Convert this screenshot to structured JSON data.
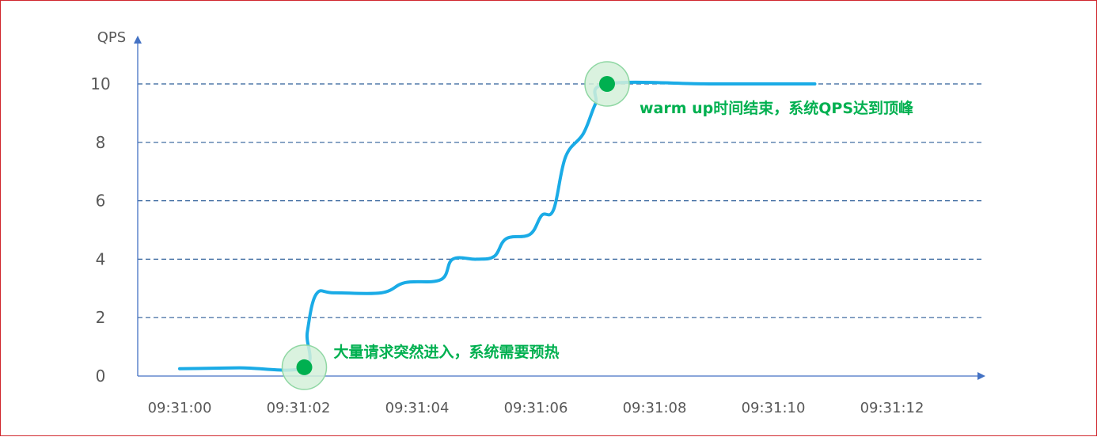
{
  "chart_data": {
    "type": "line",
    "title": "",
    "xlabel": "",
    "ylabel": "QPS",
    "ylim": [
      0,
      10
    ],
    "y_ticks": [
      "0",
      "2",
      "4",
      "6",
      "8",
      "10"
    ],
    "x_ticks": [
      "09:31:00",
      "09:31:02",
      "09:31:04",
      "09:31:06",
      "09:31:08",
      "09:31:10",
      "09:31:12"
    ],
    "grid": "dashed horizontal lines at y = 2, 4, 6, 8, 10",
    "series": [
      {
        "color": "#1aabe6",
        "points": [
          [
            "09:31:00.00",
            0.25
          ],
          [
            "09:31:01.00",
            0.28
          ],
          [
            "09:31:02.10",
            0.3
          ],
          [
            "09:31:02.15",
            1.5
          ],
          [
            "09:31:02.30",
            2.8
          ],
          [
            "09:31:02.60",
            2.85
          ],
          [
            "09:31:03.40",
            2.85
          ],
          [
            "09:31:03.80",
            3.2
          ],
          [
            "09:31:04.40",
            3.3
          ],
          [
            "09:31:04.60",
            4.0
          ],
          [
            "09:31:05.00",
            4.0
          ],
          [
            "09:31:05.30",
            4.1
          ],
          [
            "09:31:05.50",
            4.7
          ],
          [
            "09:31:05.90",
            4.85
          ],
          [
            "09:31:06.10",
            5.5
          ],
          [
            "09:31:06.30",
            5.7
          ],
          [
            "09:31:06.50",
            7.5
          ],
          [
            "09:31:06.80",
            8.3
          ],
          [
            "09:31:07.00",
            9.3
          ],
          [
            "09:31:07.20",
            10.0
          ],
          [
            "09:31:09.00",
            10.0
          ],
          [
            "09:31:10.70",
            10.0
          ]
        ]
      }
    ],
    "annotations": [
      {
        "x": "09:31:02.10",
        "y": 0.3,
        "text": "大量请求突然进入，系统需要预热",
        "color": "#00b050"
      },
      {
        "x": "09:31:07.20",
        "y": 10.0,
        "text": "warm up时间结束，系统QPS达到顶峰",
        "color": "#00b050"
      }
    ],
    "colors": {
      "axis": "#4472c4",
      "grid": "#2e5f99",
      "highlight": "#00b050",
      "highlight_ring": "#d3f0d9"
    }
  }
}
